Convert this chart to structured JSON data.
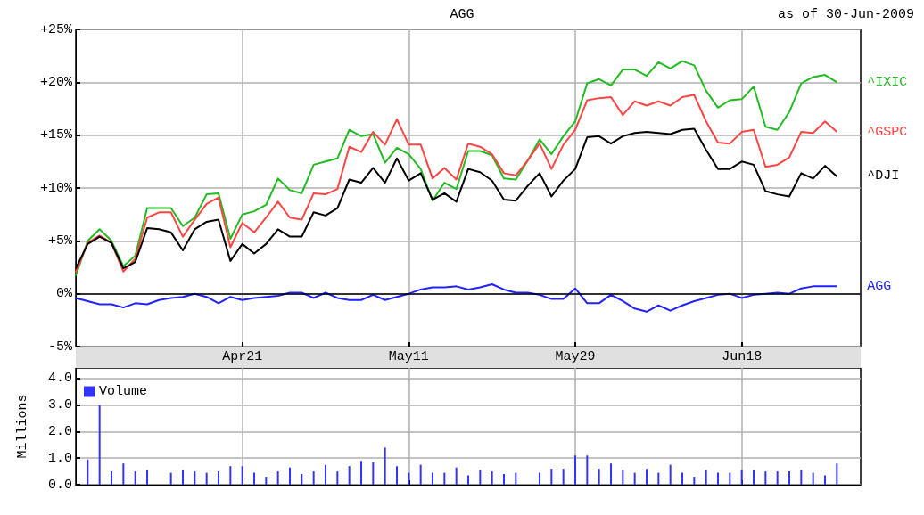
{
  "chart_data": [
    {
      "type": "line",
      "title": "AGG",
      "subtitle": "as of 30-Jun-2009",
      "categories": [
        null,
        null,
        null,
        null,
        null,
        null,
        null,
        null,
        null,
        null,
        null,
        null,
        null,
        null,
        "Apr21",
        null,
        null,
        null,
        null,
        null,
        null,
        null,
        null,
        null,
        null,
        null,
        null,
        null,
        "May11",
        null,
        null,
        null,
        null,
        null,
        null,
        null,
        null,
        null,
        null,
        null,
        null,
        null,
        "May29",
        null,
        null,
        null,
        null,
        null,
        null,
        null,
        null,
        null,
        null,
        null,
        null,
        null,
        "Jun18",
        null,
        null,
        null,
        null,
        null,
        null,
        null,
        null,
        null,
        null
      ],
      "series": [
        {
          "name": "^IXIC",
          "color": "#22bb22",
          "values": [
            1.7,
            5.0,
            6.1,
            5.0,
            2.6,
            3.6,
            8.1,
            8.1,
            8.1,
            6.4,
            7.2,
            9.4,
            9.5,
            5.2,
            7.5,
            7.8,
            8.4,
            10.9,
            9.8,
            9.5,
            12.2,
            12.5,
            12.8,
            15.5,
            14.9,
            15.1,
            12.4,
            13.8,
            13.2,
            11.8,
            8.8,
            10.5,
            9.9,
            13.5,
            13.5,
            13.1,
            10.9,
            10.8,
            12.6,
            14.6,
            13.2,
            14.9,
            16.3,
            19.9,
            20.3,
            19.7,
            21.2,
            21.2,
            20.6,
            21.9,
            21.3,
            22.0,
            21.6,
            19.2,
            17.6,
            18.3,
            18.4,
            19.6,
            15.8,
            15.5,
            17.2,
            19.9,
            20.5,
            20.7,
            20.0,
            null,
            null
          ]
        },
        {
          "name": "^GSPC",
          "color": "#ff4444",
          "values": [
            2.0,
            4.8,
            5.5,
            4.8,
            2.1,
            3.3,
            7.2,
            7.7,
            7.7,
            5.4,
            7.0,
            8.5,
            9.1,
            4.4,
            6.7,
            5.8,
            7.2,
            8.7,
            7.2,
            7.0,
            9.5,
            9.4,
            9.9,
            13.9,
            13.4,
            15.3,
            14.1,
            16.5,
            14.1,
            14.1,
            10.9,
            11.9,
            10.8,
            14.2,
            13.9,
            13.2,
            11.4,
            11.2,
            12.6,
            14.2,
            11.8,
            14.1,
            15.5,
            18.3,
            18.5,
            18.6,
            16.9,
            18.2,
            17.8,
            18.2,
            17.8,
            18.6,
            18.8,
            16.3,
            14.3,
            14.2,
            15.3,
            15.5,
            12.0,
            12.2,
            12.9,
            15.3,
            15.2,
            16.3,
            15.3,
            null,
            null
          ]
        },
        {
          "name": "^DJI",
          "color": "#000000",
          "values": [
            2.4,
            4.7,
            5.4,
            4.8,
            2.4,
            3.0,
            6.2,
            6.1,
            5.8,
            4.1,
            6.1,
            6.8,
            7.0,
            3.1,
            4.7,
            3.8,
            4.7,
            6.1,
            5.4,
            5.4,
            7.7,
            7.4,
            8.1,
            10.8,
            10.5,
            11.9,
            10.5,
            12.8,
            10.7,
            11.4,
            8.9,
            9.5,
            8.7,
            11.8,
            11.5,
            10.7,
            8.9,
            8.8,
            10.2,
            11.4,
            9.2,
            10.7,
            11.8,
            14.8,
            14.9,
            14.2,
            14.9,
            15.2,
            15.3,
            15.2,
            15.1,
            15.5,
            15.6,
            13.6,
            11.8,
            11.8,
            12.5,
            12.2,
            9.7,
            9.4,
            9.2,
            11.4,
            10.9,
            12.1,
            11.1,
            null,
            null
          ]
        },
        {
          "name": "AGG",
          "color": "#2222ff",
          "values": [
            -0.4,
            -0.7,
            -1.0,
            -1.0,
            -1.3,
            -0.9,
            -1.0,
            -0.6,
            -0.4,
            -0.3,
            0.0,
            -0.3,
            -0.9,
            -0.3,
            -0.6,
            -0.4,
            -0.3,
            -0.2,
            0.1,
            0.1,
            -0.4,
            0.1,
            -0.4,
            -0.6,
            -0.6,
            -0.1,
            -0.6,
            -0.3,
            0.0,
            0.4,
            0.6,
            0.6,
            0.7,
            0.4,
            0.6,
            0.9,
            0.4,
            0.1,
            0.1,
            -0.1,
            -0.5,
            -0.5,
            0.5,
            -0.9,
            -0.9,
            -0.1,
            -0.7,
            -1.4,
            -1.7,
            -1.1,
            -1.6,
            -1.1,
            -0.7,
            -0.4,
            -0.1,
            0.0,
            -0.4,
            -0.1,
            0.0,
            0.1,
            0.0,
            0.5,
            0.7,
            0.7,
            0.7,
            null,
            null
          ]
        }
      ],
      "ylim": [
        -5,
        25
      ],
      "yticks": [
        {
          "value": -5,
          "label": "-5%"
        },
        {
          "value": 0,
          "label": "0%"
        },
        {
          "value": 5,
          "label": "+5%"
        },
        {
          "value": 10,
          "label": "+10%"
        },
        {
          "value": 15,
          "label": "+15%"
        },
        {
          "value": 20,
          "label": "+20%"
        },
        {
          "value": 25,
          "label": "+25%"
        }
      ],
      "ref_lines": [
        {
          "axis": "y",
          "value": 0,
          "color": "#000000"
        }
      ],
      "grid": true,
      "marker": "none",
      "line_style": "solid",
      "legend": false
    },
    {
      "type": "bar",
      "ylabel": "Millions",
      "categories": [
        null,
        null,
        null,
        null,
        null,
        null,
        null,
        null,
        null,
        null,
        null,
        null,
        null,
        null,
        null,
        null,
        null,
        null,
        null,
        null,
        null,
        null,
        null,
        null,
        null,
        null,
        null,
        null,
        null,
        null,
        null,
        null,
        null,
        null,
        null,
        null,
        null,
        null,
        null,
        null,
        null,
        null,
        null,
        null,
        null,
        null,
        null,
        null,
        null,
        null,
        null,
        null,
        null,
        null,
        null,
        null,
        null,
        null,
        null,
        null,
        null,
        null,
        null,
        null,
        null,
        null,
        null
      ],
      "series": [
        {
          "name": "Volume",
          "color": "#3333ff",
          "values": [
            null,
            0.95,
            3.0,
            0.5,
            0.8,
            0.5,
            0.55,
            null,
            0.45,
            0.55,
            0.5,
            0.45,
            0.5,
            0.7,
            0.7,
            0.45,
            0.3,
            0.5,
            0.65,
            0.4,
            0.5,
            0.75,
            0.5,
            0.7,
            0.9,
            0.85,
            1.4,
            0.7,
            0.45,
            0.75,
            0.45,
            0.45,
            0.65,
            0.35,
            0.55,
            0.5,
            0.4,
            0.45,
            null,
            0.45,
            0.6,
            0.6,
            1.1,
            1.1,
            0.6,
            0.8,
            0.55,
            0.45,
            0.6,
            0.45,
            0.75,
            0.45,
            0.3,
            0.55,
            0.45,
            0.45,
            0.55,
            0.55,
            0.5,
            0.5,
            0.5,
            0.55,
            0.45,
            0.35,
            0.8,
            null,
            null
          ]
        }
      ],
      "ylim": [
        0,
        4.4
      ],
      "yticks": [
        {
          "value": 0,
          "label": "0.0"
        },
        {
          "value": 1,
          "label": "1.0"
        },
        {
          "value": 2,
          "label": "2.0"
        },
        {
          "value": 3,
          "label": "3.0"
        },
        {
          "value": 4,
          "label": "4.0"
        }
      ],
      "grid": true,
      "legend": "top left",
      "tick_labels": "y"
    }
  ]
}
